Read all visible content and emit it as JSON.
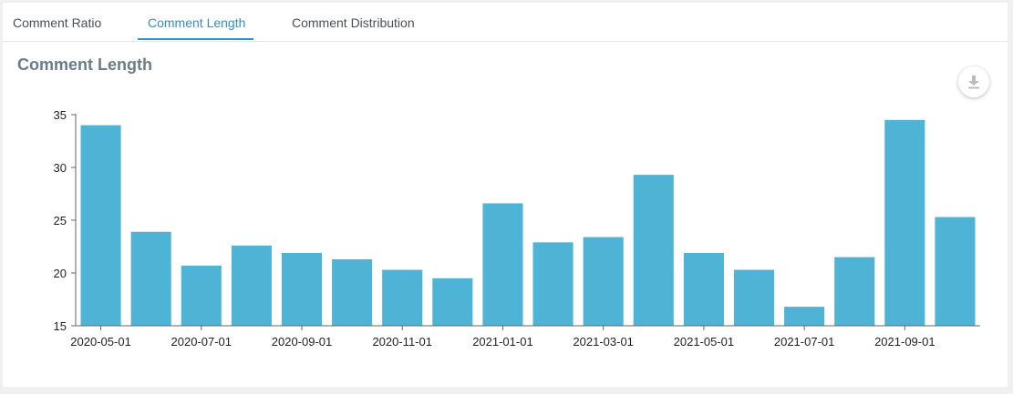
{
  "tabs": [
    {
      "label": "Comment Ratio",
      "active": false
    },
    {
      "label": "Comment Length",
      "active": true
    },
    {
      "label": "Comment Distribution",
      "active": false
    }
  ],
  "section_title": "Comment Length",
  "download_icon": "download-icon",
  "colors": {
    "bar": "#4fb3d5",
    "accent": "#2a8fd6",
    "axis": "#666666"
  },
  "chart_data": {
    "type": "bar",
    "title": "",
    "xlabel": "",
    "ylabel": "",
    "ylim": [
      15,
      35
    ],
    "yticks": [
      15,
      20,
      25,
      30,
      35
    ],
    "categories": [
      "2020-05-01",
      "2020-06-01",
      "2020-07-01",
      "2020-08-01",
      "2020-09-01",
      "2020-10-01",
      "2020-11-01",
      "2020-12-01",
      "2021-01-01",
      "2021-02-01",
      "2021-03-01",
      "2021-04-01",
      "2021-05-01",
      "2021-06-01",
      "2021-07-01",
      "2021-08-01",
      "2021-09-01",
      "2021-10-01"
    ],
    "xtick_labels": [
      "2020-05-01",
      "2020-07-01",
      "2020-09-01",
      "2020-11-01",
      "2021-01-01",
      "2021-03-01",
      "2021-05-01",
      "2021-07-01",
      "2021-09-01"
    ],
    "values": [
      34.0,
      23.9,
      20.7,
      22.6,
      21.9,
      21.3,
      20.3,
      19.5,
      26.6,
      22.9,
      23.4,
      29.3,
      21.9,
      20.3,
      16.8,
      21.5,
      34.5,
      25.3
    ],
    "grid": false,
    "legend": "none"
  }
}
